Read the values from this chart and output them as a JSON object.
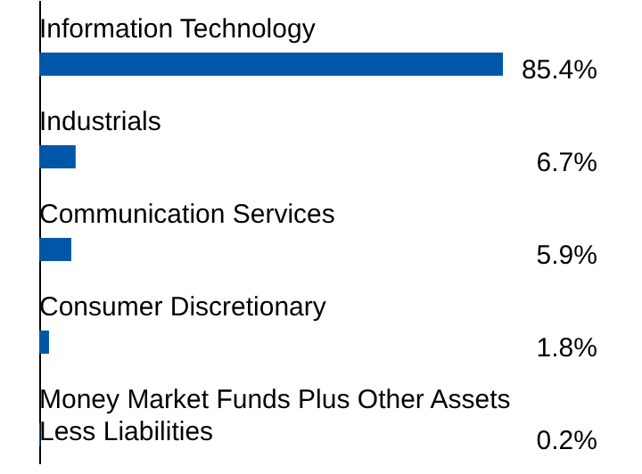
{
  "chart_data": {
    "type": "bar",
    "orientation": "horizontal",
    "categories": [
      "Information Technology",
      "Industrials",
      "Communication Services",
      "Consumer Discretionary",
      "Money Market Funds Plus Other Assets Less Liabilities"
    ],
    "values": [
      85.4,
      6.7,
      5.9,
      1.8,
      0.2
    ],
    "value_labels": [
      "85.4%",
      "6.7%",
      "5.9%",
      "1.8%",
      "0.2%"
    ],
    "color": "#0057a8"
  }
}
